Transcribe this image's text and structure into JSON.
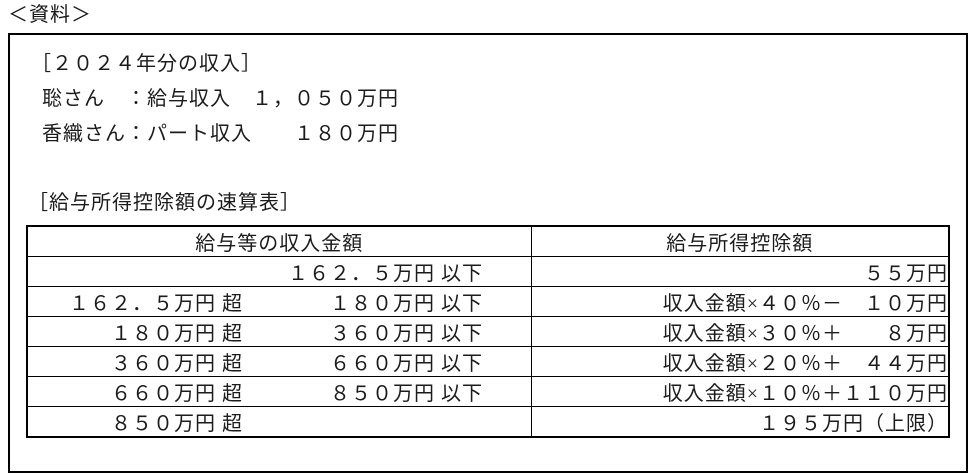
{
  "page": {
    "label": "＜資料＞"
  },
  "income_section": {
    "title": "［２０２４年分の収入］",
    "lines": [
      "聡さん　：給与収入　１，０５０万円",
      "香織さん：パート収入　　１８０万円"
    ]
  },
  "table_section": {
    "title": "［給与所得控除額の速算表］",
    "table": {
      "headers": [
        "給与等の収入金額",
        "給与所得控除額"
      ],
      "rows": [
        {
          "lower": "",
          "upper": "１６２．５万円 以下",
          "deduction": "５５万円"
        },
        {
          "lower": "１６２．５万円 超",
          "upper": "１８０万円 以下",
          "deduction": "収入金額×４０％－　１０万円"
        },
        {
          "lower": "１８０万円 超",
          "upper": "３６０万円 以下",
          "deduction": "収入金額×３０％＋　　８万円"
        },
        {
          "lower": "３６０万円 超",
          "upper": "６６０万円 以下",
          "deduction": "収入金額×２０％＋　４４万円"
        },
        {
          "lower": "６６０万円 超",
          "upper": "８５０万円 以下",
          "deduction": "収入金額×１０％＋１１０万円"
        },
        {
          "lower": "８５０万円 超",
          "upper": "",
          "deduction": "１９５万円（上限）"
        }
      ]
    }
  }
}
